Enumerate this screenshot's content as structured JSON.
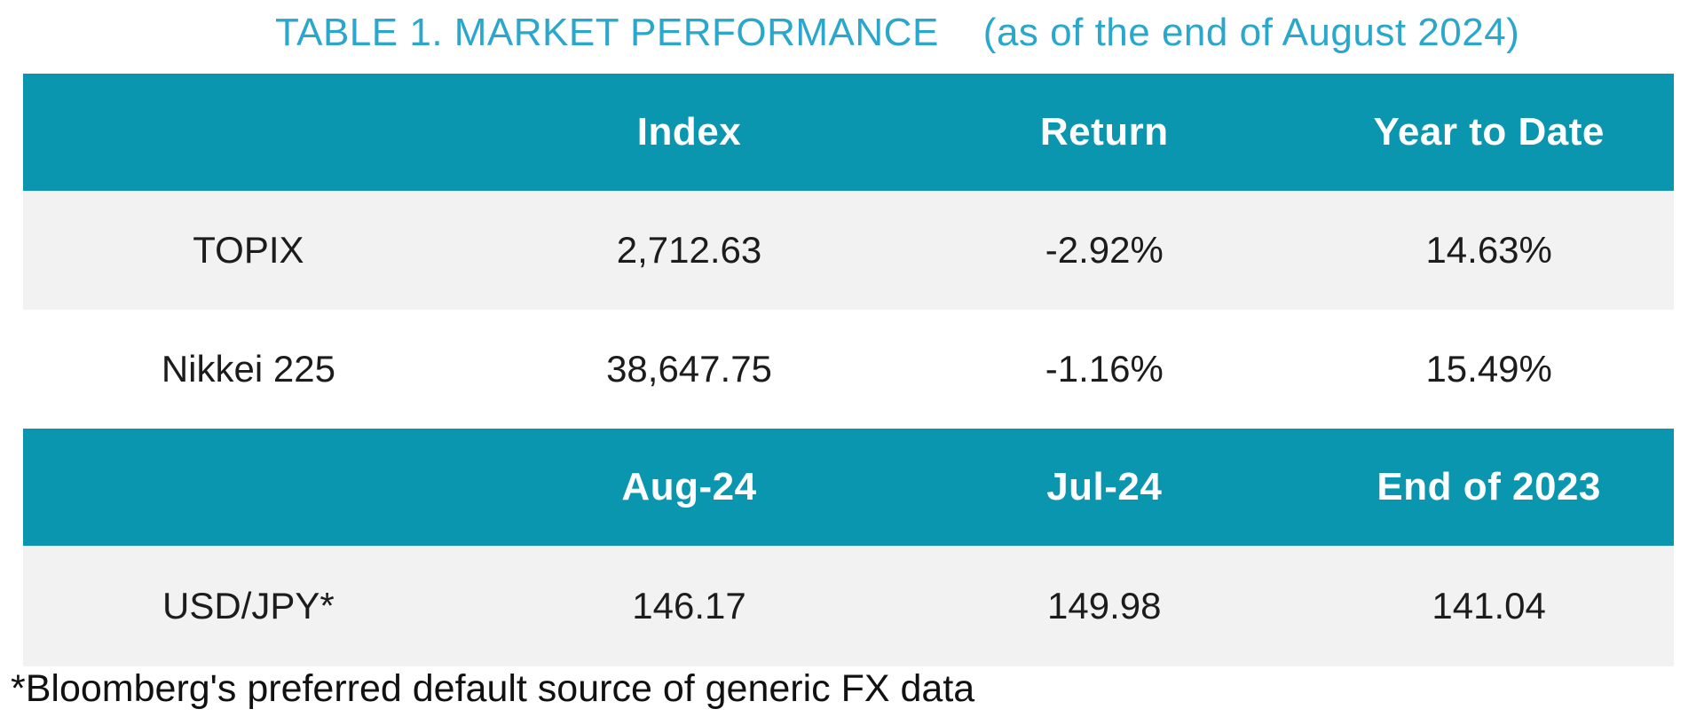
{
  "chart_data": {
    "type": "table",
    "title": "TABLE 1. MARKET PERFORMANCE",
    "subtitle": "(as of the end of August 2024)",
    "sections": [
      {
        "columns": [
          "",
          "Index",
          "Return",
          "Year to Date"
        ],
        "rows": [
          {
            "label": "TOPIX",
            "values": [
              "2,712.63",
              "-2.92%",
              "14.63%"
            ]
          },
          {
            "label": "Nikkei 225",
            "values": [
              "38,647.75",
              "-1.16%",
              "15.49%"
            ]
          }
        ]
      },
      {
        "columns": [
          "",
          "Aug-24",
          "Jul-24",
          "End of 2023"
        ],
        "rows": [
          {
            "label": "USD/JPY*",
            "values": [
              "146.17",
              "149.98",
              "141.04"
            ]
          }
        ]
      }
    ],
    "footnote": "*Bloomberg's preferred default source of generic FX data",
    "layout_hints": {
      "legend": "none",
      "grid": "off",
      "row_striping": "alternating gray and white"
    }
  },
  "colors": {
    "header_background": "#0996AE",
    "header_text": "#FFFFFF",
    "title_text": "#2AA7CB",
    "alt_row_background": "#F2F2F2",
    "body_text": "#1C1C1C",
    "footnote_text": "#111111",
    "page_background": "#FFFFFF"
  }
}
